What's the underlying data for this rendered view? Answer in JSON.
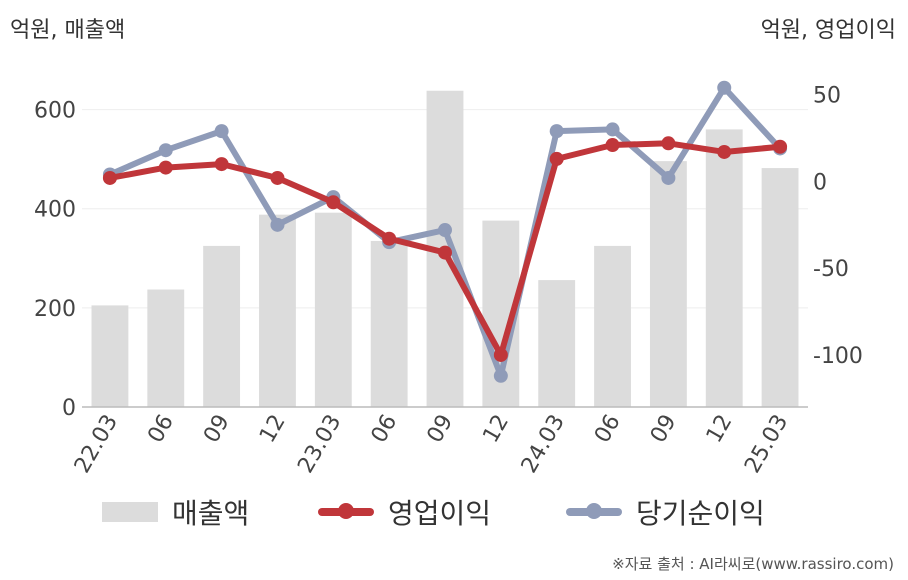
{
  "units": {
    "left": "억원, 매출액",
    "right": "억원, 영업이익"
  },
  "source": "※자료 출처 : AI라씨로(www.rassiro.com)",
  "chart_data": {
    "type": "bar+line",
    "categories": [
      "22.03",
      "06",
      "09",
      "12",
      "23.03",
      "06",
      "09",
      "12",
      "24.03",
      "06",
      "09",
      "12",
      "25.03"
    ],
    "left_axis": {
      "ticks": [
        0,
        200,
        400,
        600
      ],
      "ylim": [
        0,
        700
      ]
    },
    "right_axis": {
      "ticks": [
        50,
        0,
        -50,
        -100
      ],
      "ylim": [
        -130,
        70
      ]
    },
    "grid": true,
    "legend_position": "bottom",
    "series": [
      {
        "name": "매출액",
        "kind": "bar",
        "axis": "left",
        "color": "#dcdcdc",
        "values": [
          205,
          237,
          325,
          388,
          392,
          335,
          638,
          376,
          256,
          325,
          496,
          560,
          482
        ]
      },
      {
        "name": "영업이익",
        "kind": "line",
        "axis": "right",
        "color": "#c0363a",
        "values": [
          2,
          8,
          10,
          2,
          -12,
          -33,
          -41,
          -100,
          13,
          21,
          22,
          17,
          20
        ]
      },
      {
        "name": "당기순이익",
        "kind": "line",
        "axis": "right",
        "color": "#8f9bb8",
        "values": [
          4,
          18,
          29,
          -25,
          -9,
          -35,
          -28,
          -112,
          29,
          30,
          2,
          54,
          19
        ]
      }
    ]
  }
}
